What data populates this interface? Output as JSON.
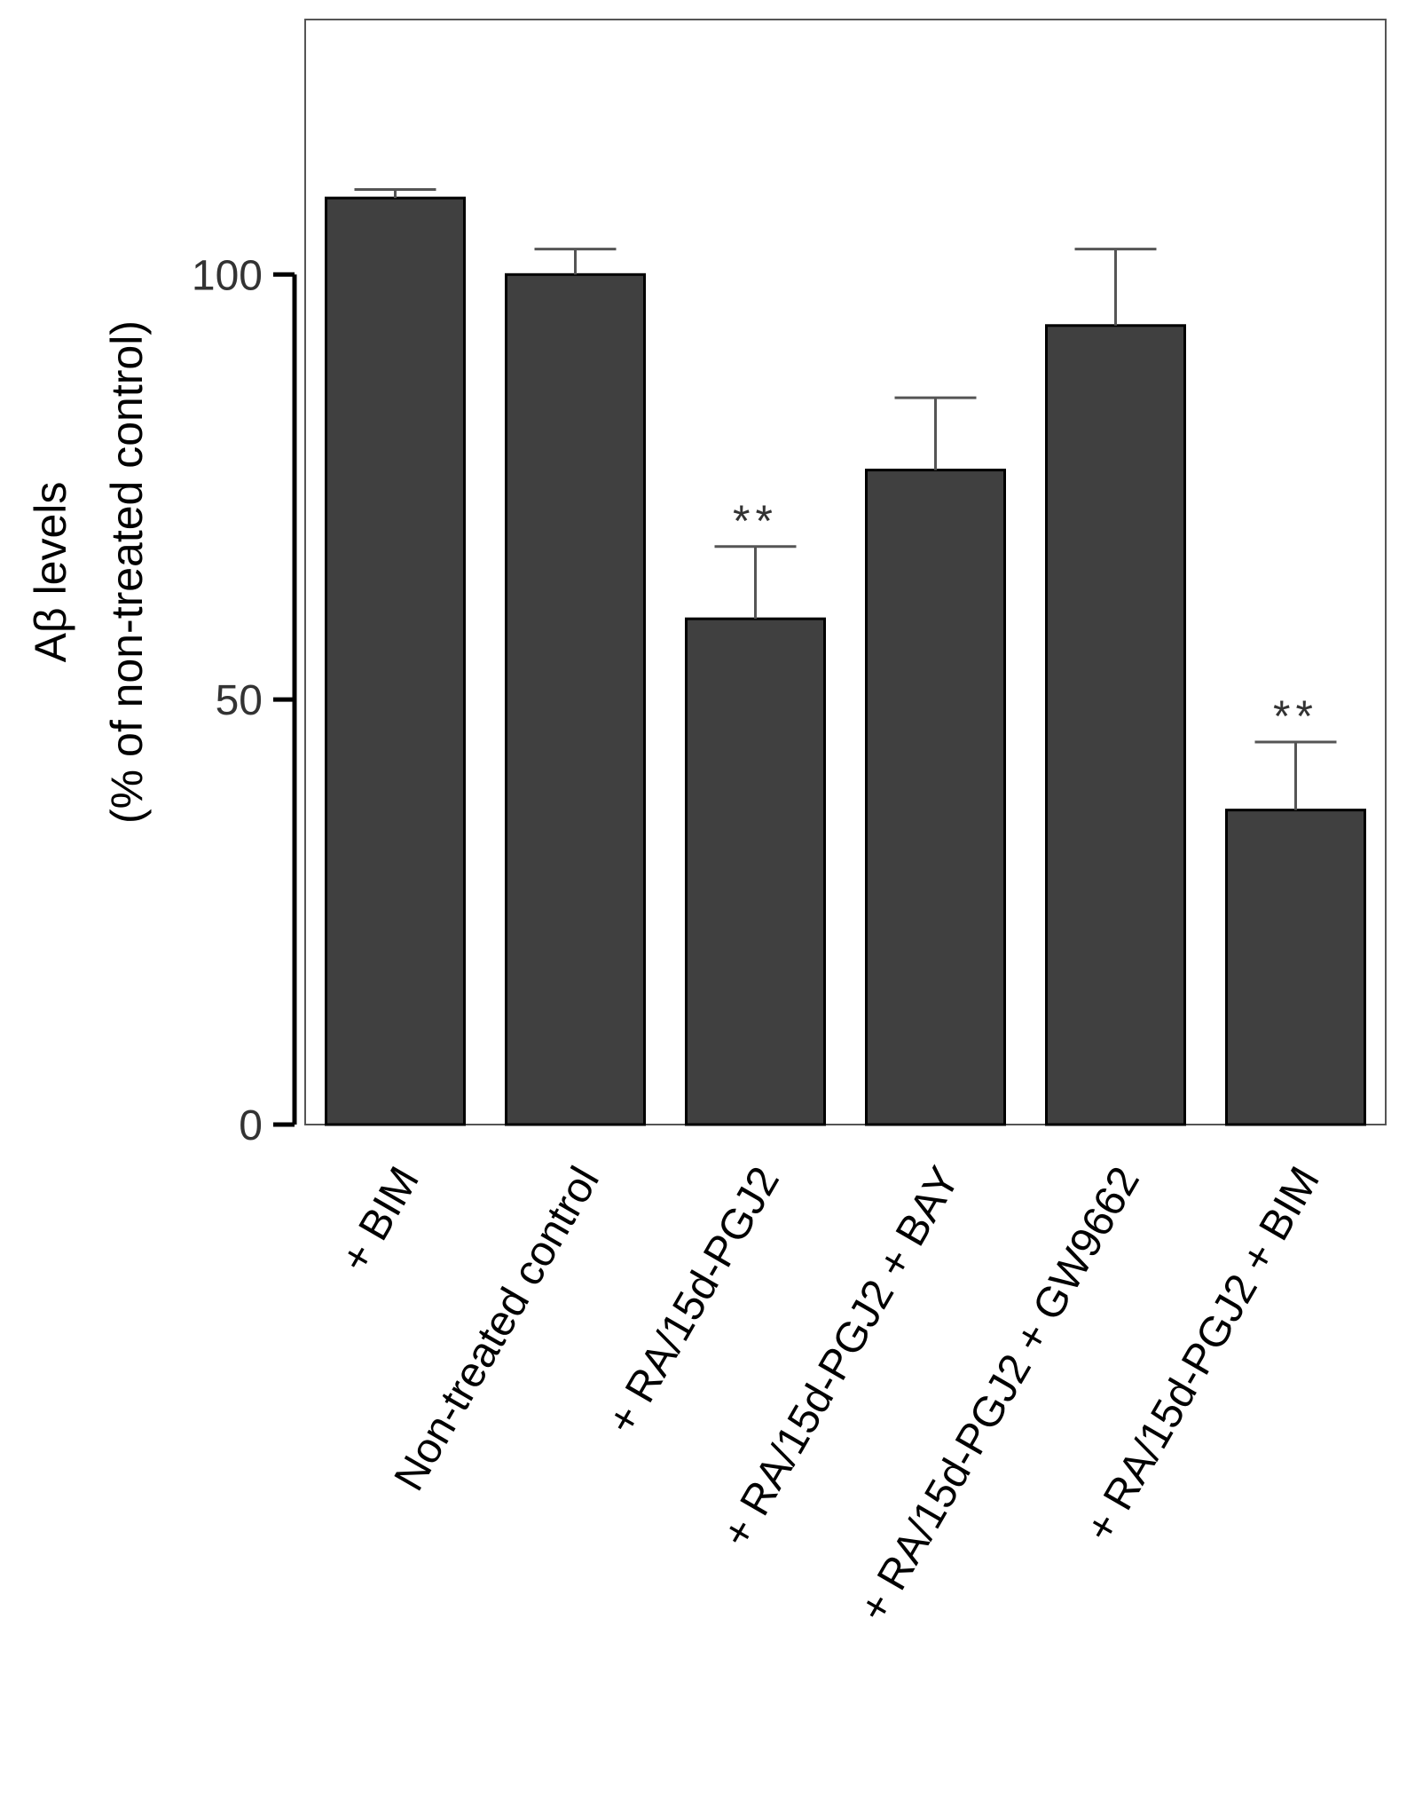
{
  "chart_data": {
    "type": "bar",
    "title": "",
    "ylabel_line1": "Aβ levels",
    "ylabel_line2": "(% of non-treated control)",
    "xlabel": "",
    "ylim": [
      0,
      130
    ],
    "yticks": [
      0,
      50,
      100
    ],
    "ytick_labels": [
      "0",
      "50",
      "100"
    ],
    "grid": false,
    "categories": [
      "+ BIM",
      "Non-treated control",
      "+ RA/15d-PGJ2",
      "+ RA/15d-PGJ2 + BAY",
      "+ RA/15d-PGJ2 + GW9662",
      "+ RA/15d-PGJ2 + BIM"
    ],
    "values": [
      109,
      100,
      59.5,
      77,
      94,
      37
    ],
    "errors": [
      1,
      3,
      8.5,
      8.5,
      9,
      8
    ],
    "annotations": [
      "",
      "",
      "**",
      "",
      "",
      "**"
    ],
    "colors": {
      "bar": "#404040",
      "axis": "#000000",
      "frame": "#555555",
      "tick_label": "#333333",
      "label": "#000000"
    }
  }
}
